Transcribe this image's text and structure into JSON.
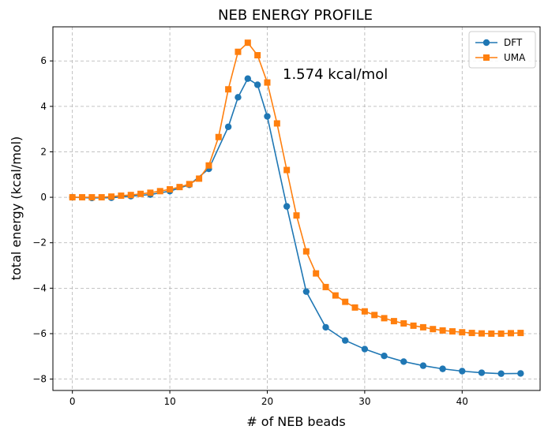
{
  "chart_data": {
    "type": "line",
    "title": "NEB ENERGY PROFILE",
    "xlabel": "# of NEB beads",
    "ylabel": "total energy (kcal/mol)",
    "xlim": [
      -2,
      48
    ],
    "ylim": [
      -8.5,
      7.5
    ],
    "xticks": [
      0,
      10,
      20,
      30,
      40
    ],
    "yticks": [
      -8,
      -6,
      -4,
      -2,
      0,
      2,
      4,
      6
    ],
    "grid": true,
    "legend_position": "top-right",
    "annotation": "1.574 kcal/mol",
    "series": [
      {
        "name": "DFT",
        "color": "#1f77b4",
        "marker": "circle",
        "x": [
          0,
          2,
          4,
          6,
          8,
          10,
          12,
          14,
          16,
          17,
          18,
          19,
          20,
          22,
          24,
          26,
          28,
          30,
          32,
          34,
          36,
          38,
          40,
          42,
          44,
          46
        ],
        "y": [
          0.0,
          -0.03,
          -0.02,
          0.05,
          0.12,
          0.27,
          0.55,
          1.25,
          3.1,
          4.4,
          5.22,
          4.95,
          3.56,
          -0.4,
          -4.15,
          -5.72,
          -6.3,
          -6.68,
          -6.98,
          -7.23,
          -7.41,
          -7.55,
          -7.65,
          -7.72,
          -7.76,
          -7.75
        ]
      },
      {
        "name": "UMA",
        "color": "#ff7f0e",
        "marker": "square",
        "x": [
          0,
          1,
          2,
          3,
          4,
          5,
          6,
          7,
          8,
          9,
          10,
          11,
          12,
          13,
          14,
          15,
          16,
          17,
          18,
          19,
          20,
          21,
          22,
          23,
          24,
          25,
          26,
          27,
          28,
          29,
          30,
          31,
          32,
          33,
          34,
          35,
          36,
          37,
          38,
          39,
          40,
          41,
          42,
          43,
          44,
          45,
          46
        ],
        "y": [
          0.0,
          0.0,
          0.0,
          0.0,
          0.03,
          0.07,
          0.1,
          0.15,
          0.2,
          0.27,
          0.35,
          0.45,
          0.58,
          0.82,
          1.4,
          2.65,
          4.75,
          6.4,
          6.8,
          6.25,
          5.05,
          3.25,
          1.2,
          -0.8,
          -2.38,
          -3.35,
          -3.95,
          -4.32,
          -4.6,
          -4.85,
          -5.02,
          -5.18,
          -5.32,
          -5.45,
          -5.55,
          -5.65,
          -5.72,
          -5.8,
          -5.86,
          -5.9,
          -5.94,
          -5.97,
          -5.99,
          -6.0,
          -6.0,
          -5.98,
          -5.97
        ]
      }
    ]
  }
}
